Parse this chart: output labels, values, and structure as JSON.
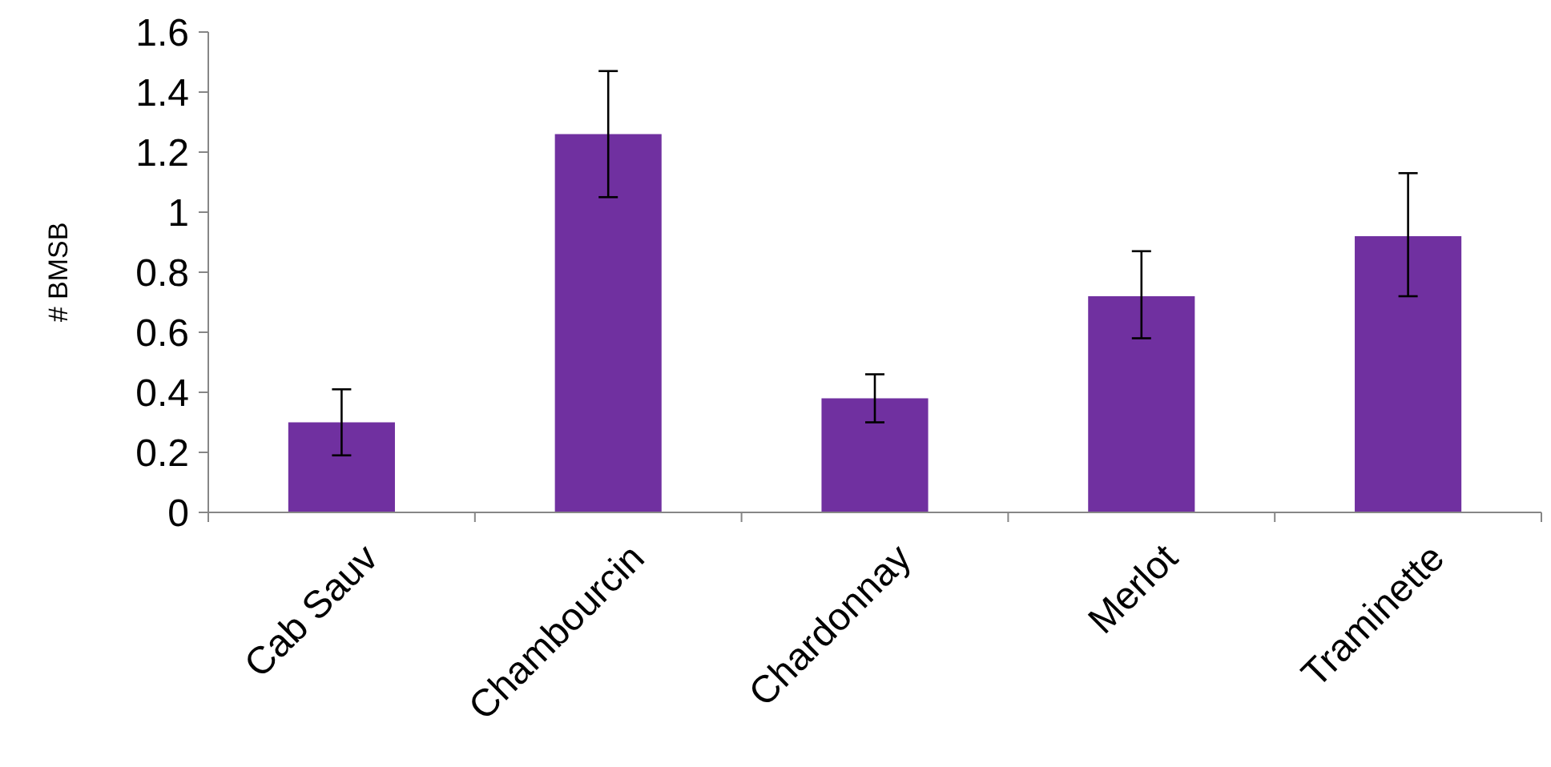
{
  "chart_data": {
    "type": "bar",
    "ylabel": "# BMSB",
    "categories": [
      "Cab Sauv",
      "Chambourcin",
      "Chardonnay",
      "Merlot",
      "Traminette"
    ],
    "values": [
      0.3,
      1.26,
      0.38,
      0.72,
      0.92
    ],
    "errors": [
      [
        0.19,
        0.41
      ],
      [
        1.05,
        1.47
      ],
      [
        0.3,
        0.46
      ],
      [
        0.58,
        0.87
      ],
      [
        0.72,
        1.13
      ]
    ],
    "color": "#7030a0",
    "ylim": [
      0,
      1.6
    ],
    "yticks": [
      0,
      0.2,
      0.4,
      0.6,
      0.8,
      1,
      1.2,
      1.4,
      1.6
    ],
    "grid": false
  }
}
